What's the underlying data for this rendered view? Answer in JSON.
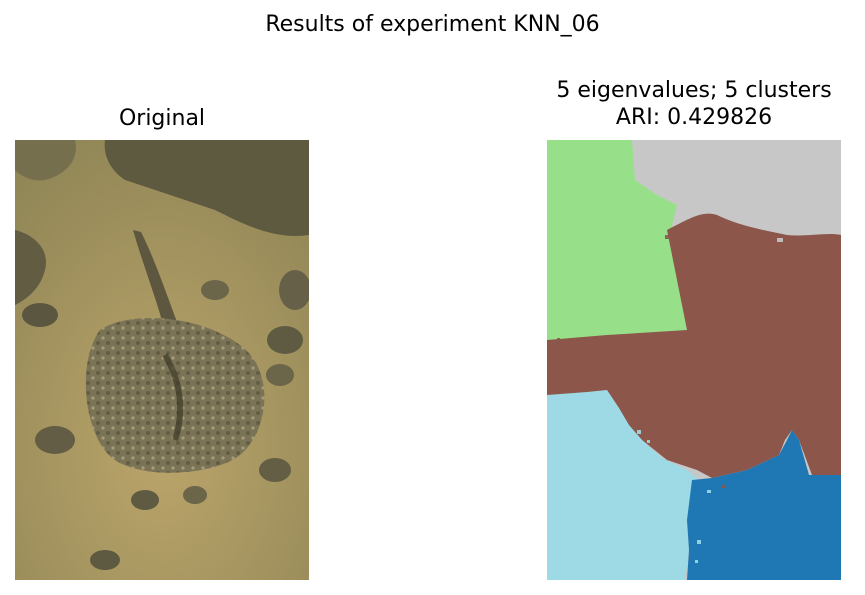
{
  "figure": {
    "suptitle": "Results of experiment KNN_06"
  },
  "panels": [
    {
      "title": "Original",
      "image": "photo of a stingray on sandy sea floor with rocks"
    },
    {
      "title_line1": "5 eigenvalues; 5 clusters",
      "title_line2": "ARI: 0.429826",
      "image": "segmentation map with 5 colored clusters"
    }
  ],
  "colors": {
    "sand": "#b3a066",
    "rock": "#6f6b4b",
    "ray": "#7b7458",
    "cluster_green": "#98df8a",
    "cluster_gray": "#c7c7c7",
    "cluster_brown": "#8c564b",
    "cluster_lightblue": "#9edae5",
    "cluster_blue": "#1f77b4"
  }
}
